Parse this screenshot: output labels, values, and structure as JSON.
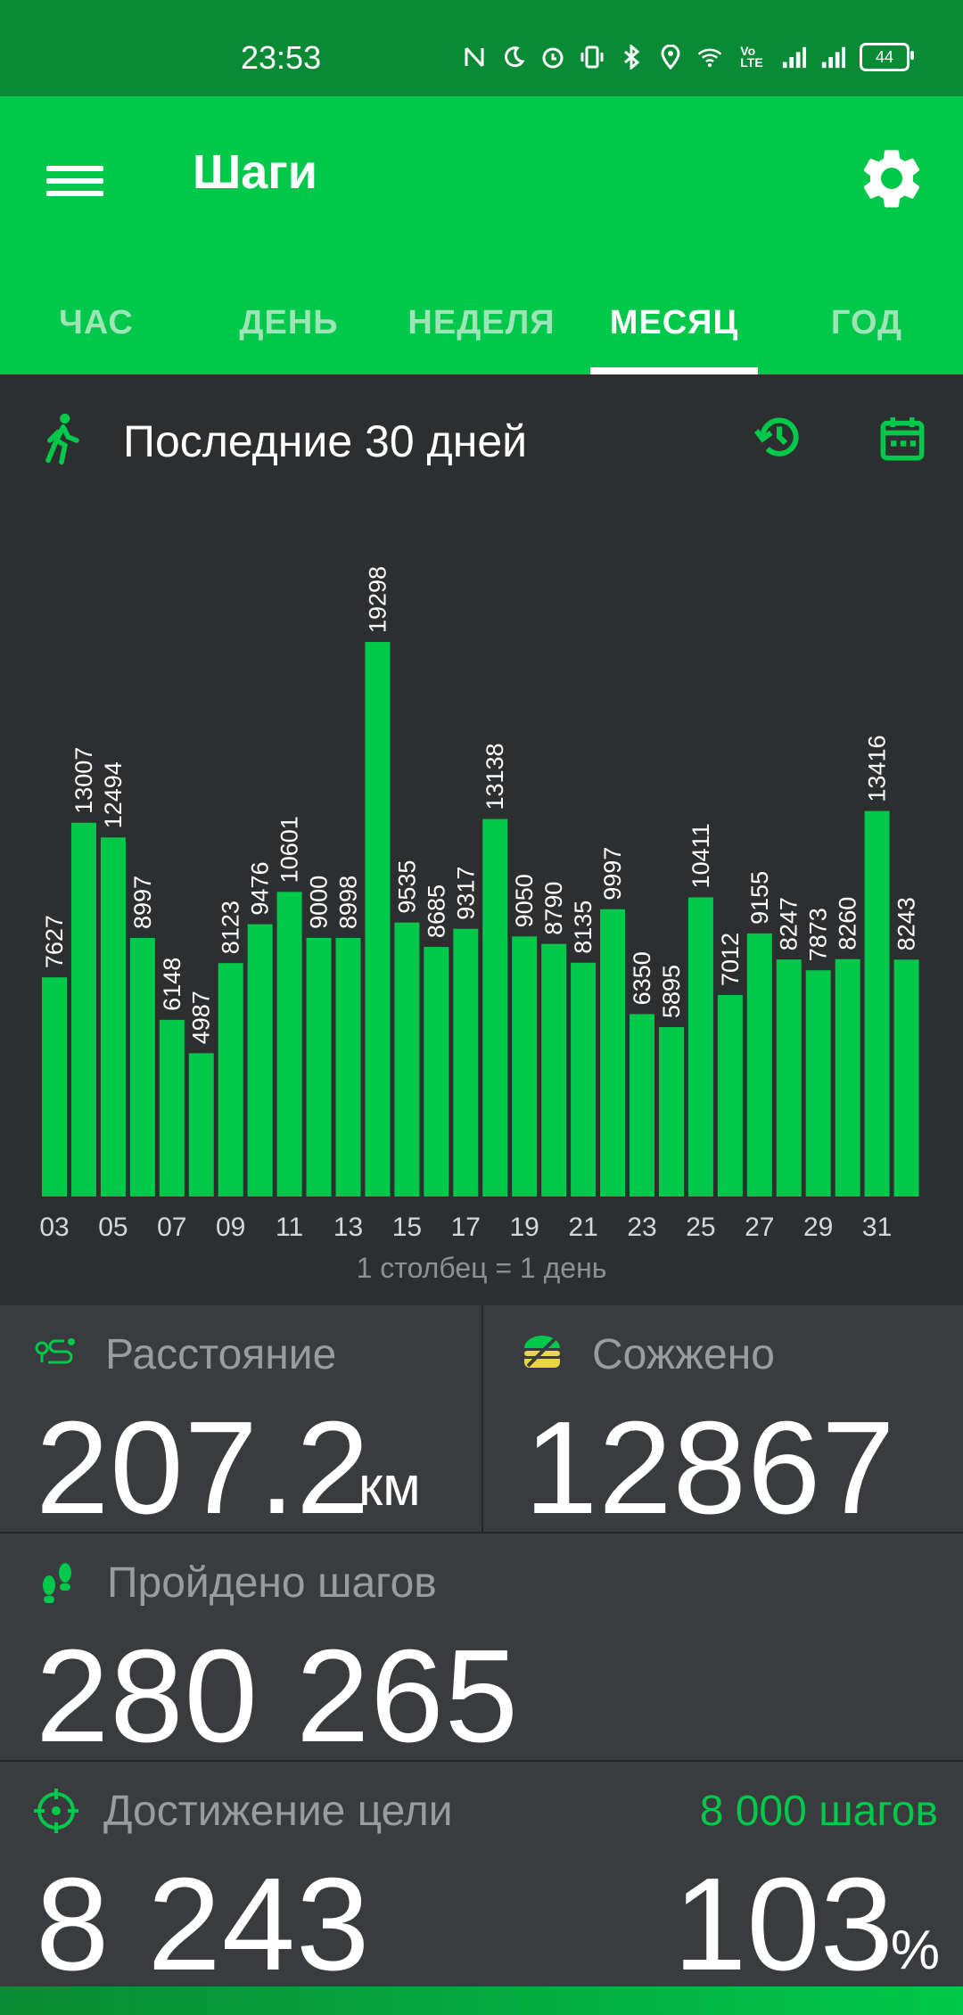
{
  "status_bar": {
    "time": "23:53",
    "battery": "44",
    "icons": [
      "nfc-icon",
      "moon-icon",
      "alarm-icon",
      "vibrate-icon",
      "bluetooth-icon",
      "location-icon",
      "wifi-icon",
      "volte-icon",
      "signal1-icon",
      "signal2-icon"
    ]
  },
  "app": {
    "title": "Шаги",
    "tabs": [
      "ЧАС",
      "ДЕНЬ",
      "НЕДЕЛЯ",
      "МЕСЯЦ",
      "ГОД"
    ],
    "active_tab": "МЕСЯЦ",
    "accent": "#00c84a"
  },
  "chart_header": {
    "title": "Последние 30 дней"
  },
  "chart_data": {
    "type": "bar",
    "x_tick_labels": [
      "03",
      "05",
      "07",
      "09",
      "11",
      "13",
      "15",
      "17",
      "19",
      "21",
      "23",
      "25",
      "27",
      "29",
      "31"
    ],
    "values": [
      7627,
      13007,
      12494,
      8997,
      6148,
      4987,
      8123,
      9476,
      10601,
      9000,
      8998,
      19298,
      9535,
      8685,
      9317,
      13138,
      9050,
      8790,
      8135,
      9997,
      6350,
      5895,
      10411,
      7012,
      9155,
      8247,
      7873,
      8260,
      13416,
      8243
    ],
    "data_labels": [
      "7627",
      "13007",
      "12494",
      "8997",
      "6148",
      "4987",
      "8123",
      "9476",
      "10601",
      "9000",
      "8998",
      "19298",
      "9535",
      "8685",
      "9317",
      "13138",
      "9050",
      "8790",
      "8135",
      "9997",
      "6350",
      "5895",
      "10411",
      "7012",
      "9155",
      "8247",
      "7873",
      "8260",
      "13416",
      "8243"
    ],
    "note": "1 столбец = 1 день",
    "bar_color": "#00c84a"
  },
  "stats": {
    "distance": {
      "label": "Расстояние",
      "value": "207.2",
      "unit": "км"
    },
    "burned": {
      "label": "Сожжено",
      "value": "12867"
    },
    "steps": {
      "label": "Пройдено шагов",
      "value": "280 265"
    },
    "goal": {
      "label": "Достижение цели",
      "value": "8 243",
      "target": "8 000 шагов",
      "percent": "103",
      "percent_sign": "%"
    }
  }
}
